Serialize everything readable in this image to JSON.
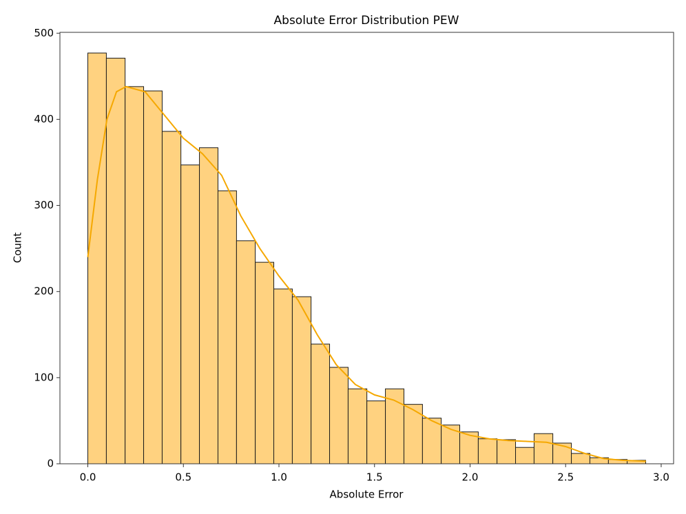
{
  "chart_data": {
    "type": "histogram",
    "title": "Absolute Error Distribution PEW",
    "xlabel": "Absolute Error",
    "ylabel": "Count",
    "bins": [
      0,
      0.097,
      0.195,
      0.292,
      0.389,
      0.487,
      0.584,
      0.681,
      0.778,
      0.876,
      0.973,
      1.07,
      1.168,
      1.265,
      1.362,
      1.46,
      1.557,
      1.654,
      1.751,
      1.849,
      1.946,
      2.043,
      2.141,
      2.238,
      2.335,
      2.433,
      2.53,
      2.627,
      2.724,
      2.822,
      2.919
    ],
    "values": [
      477,
      471,
      438,
      433,
      386,
      347,
      367,
      317,
      259,
      234,
      203,
      194,
      139,
      112,
      87,
      73,
      87,
      69,
      53,
      45,
      37,
      29,
      28,
      19,
      35,
      24,
      12,
      7,
      5,
      4
    ],
    "color": "#ffd280",
    "edgecolor": "#1a1a1a",
    "kde": {
      "color": "#f5a800",
      "x": [
        0,
        0.05,
        0.1,
        0.15,
        0.2,
        0.3,
        0.4,
        0.5,
        0.6,
        0.7,
        0.8,
        0.9,
        1.0,
        1.1,
        1.2,
        1.3,
        1.4,
        1.5,
        1.6,
        1.7,
        1.8,
        1.9,
        2.0,
        2.1,
        2.2,
        2.3,
        2.4,
        2.5,
        2.6,
        2.7,
        2.8,
        2.92
      ],
      "values": [
        240,
        330,
        400,
        432,
        438,
        432,
        405,
        378,
        360,
        335,
        288,
        250,
        218,
        190,
        150,
        115,
        92,
        80,
        74,
        63,
        50,
        40,
        33,
        29,
        27,
        26,
        25,
        20,
        12,
        6,
        4,
        3
      ]
    },
    "xlim": [
      -0.146,
      3.065
    ],
    "xticks": [
      {
        "value": 0,
        "label": "0.0"
      },
      0.5,
      {
        "value": 1,
        "label": "1.0"
      },
      1.5,
      {
        "value": 2,
        "label": "2.0"
      },
      2.5,
      {
        "value": 3,
        "label": "3.0"
      }
    ],
    "ylim": [
      0,
      501
    ],
    "yticks": [
      0,
      100,
      200,
      300,
      400,
      500
    ]
  }
}
